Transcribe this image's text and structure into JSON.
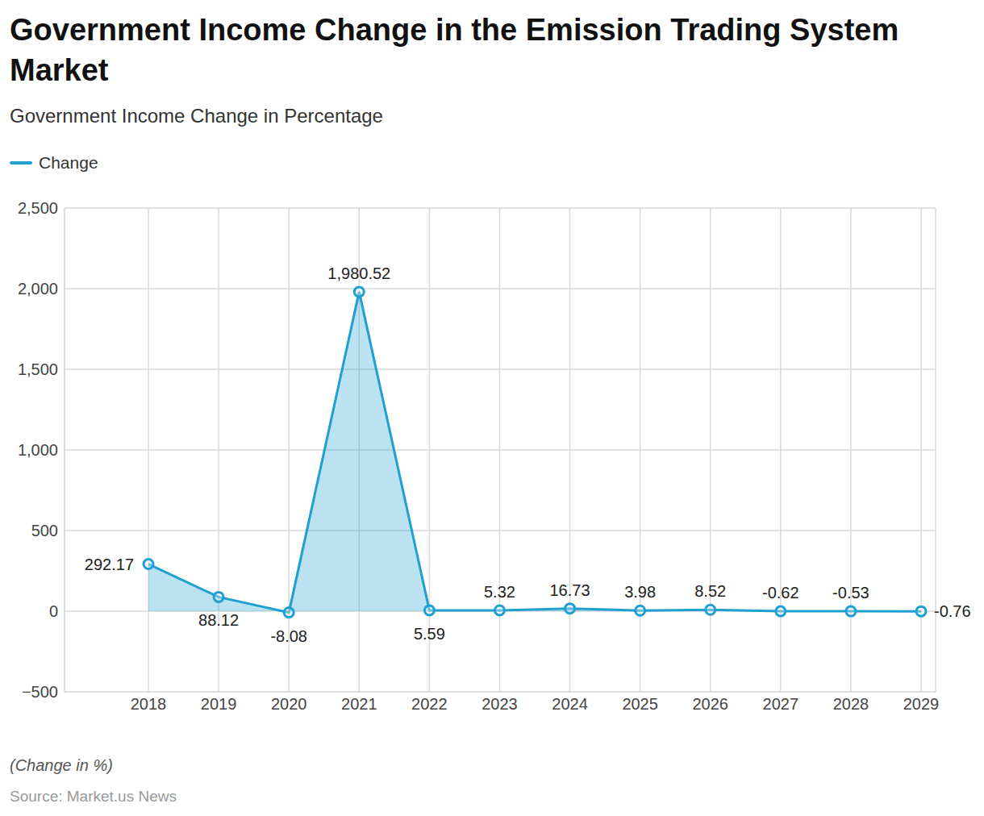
{
  "chart_data": {
    "type": "area",
    "title": "Government Income Change in the Emission Trading System Market",
    "subtitle": "Government Income Change in Percentage",
    "caption": "(Change in %)",
    "source": "Source: Market.us News",
    "categories": [
      "2018",
      "2019",
      "2020",
      "2021",
      "2022",
      "2023",
      "2024",
      "2025",
      "2026",
      "2027",
      "2028",
      "2029"
    ],
    "series": [
      {
        "name": "Change",
        "color": "#1fa0d0",
        "values": [
          292.17,
          88.12,
          -8.08,
          1980.52,
          5.59,
          5.32,
          16.73,
          3.98,
          8.52,
          -0.62,
          -0.53,
          -0.76
        ],
        "value_labels": [
          "292.17",
          "88.12",
          "-8.08",
          "1,980.52",
          "5.59",
          "5.32",
          "16.73",
          "3.98",
          "8.52",
          "-0.62",
          "-0.53",
          "-0.76"
        ]
      }
    ],
    "ylim": [
      -500,
      2500
    ],
    "yticks": [
      {
        "value": -500,
        "label": "−500"
      },
      0,
      500,
      {
        "value": 1000,
        "label": "1,000"
      },
      {
        "value": 1500,
        "label": "1,500"
      },
      {
        "value": 2000,
        "label": "2,000"
      },
      {
        "value": 2500,
        "label": "2,500"
      }
    ],
    "grid": true,
    "data_labels": true,
    "legend": "top-left",
    "marker": "circle"
  }
}
